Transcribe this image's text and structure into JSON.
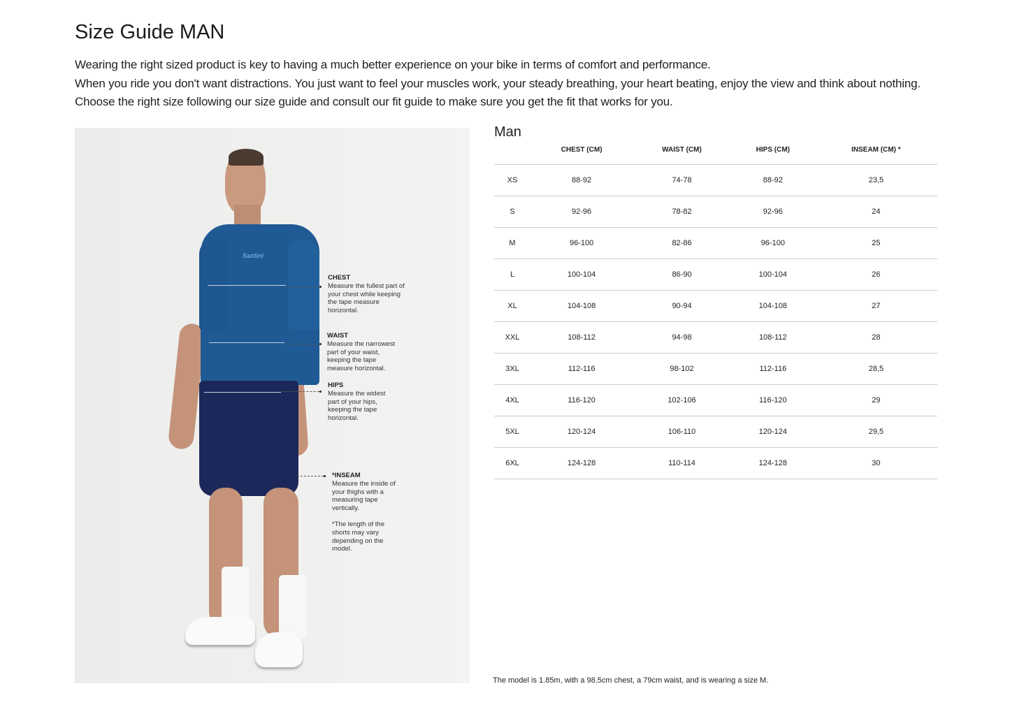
{
  "title": "Size Guide MAN",
  "intro": [
    "Wearing the right sized product is key to having a much better experience on your bike in terms of comfort and performance.",
    "When you ride you don't want distractions. You just want to feel your muscles work, your steady breathing, your heart beating, enjoy the view and think about nothing.",
    "Choose the right size following our size guide and consult our fit guide to make sure you get the fit that works for you."
  ],
  "photo": {
    "brand_mark": "Santini",
    "annotations": [
      {
        "title": "CHEST",
        "text": "Measure the fullest part of your chest while keeping the tape measure horizontal."
      },
      {
        "title": "WAIST",
        "text": "Measure the narrowest part of your waist, keeping the tape measure horizontal."
      },
      {
        "title": "HIPS",
        "text": "Measure the widest part of your hips, keeping the tape horizontal."
      },
      {
        "title": "*INSEAM",
        "text": "Measure the inside of your thighs with a measuring tape vertically.",
        "note": "*The length of the shorts may vary depending on the model."
      }
    ]
  },
  "table": {
    "title": "Man",
    "headers": [
      "",
      "CHEST (CM)",
      "WAIST (CM)",
      "HIPS (CM)",
      "INSEAM (CM) *"
    ],
    "rows": [
      [
        "XS",
        "88-92",
        "74-78",
        "88-92",
        "23,5"
      ],
      [
        "S",
        "92-96",
        "78-82",
        "92-96",
        "24"
      ],
      [
        "M",
        "96-100",
        "82-86",
        "96-100",
        "25"
      ],
      [
        "L",
        "100-104",
        "86-90",
        "100-104",
        "26"
      ],
      [
        "XL",
        "104-108",
        "90-94",
        "104-108",
        "27"
      ],
      [
        "XXL",
        "108-112",
        "94-98",
        "108-112",
        "28"
      ],
      [
        "3XL",
        "112-116",
        "98-102",
        "112-116",
        "28,5"
      ],
      [
        "4XL",
        "116-120",
        "102-106",
        "116-120",
        "29"
      ],
      [
        "5XL",
        "120-124",
        "106-110",
        "120-124",
        "29,5"
      ],
      [
        "6XL",
        "124-128",
        "110-114",
        "124-128",
        "30"
      ]
    ]
  },
  "footnote": "The model is 1.85m, with a 98.5cm chest, a 79cm waist, and is wearing a size M.",
  "colors": {
    "jersey": "#1f5a94",
    "shorts": "#1c2859"
  }
}
